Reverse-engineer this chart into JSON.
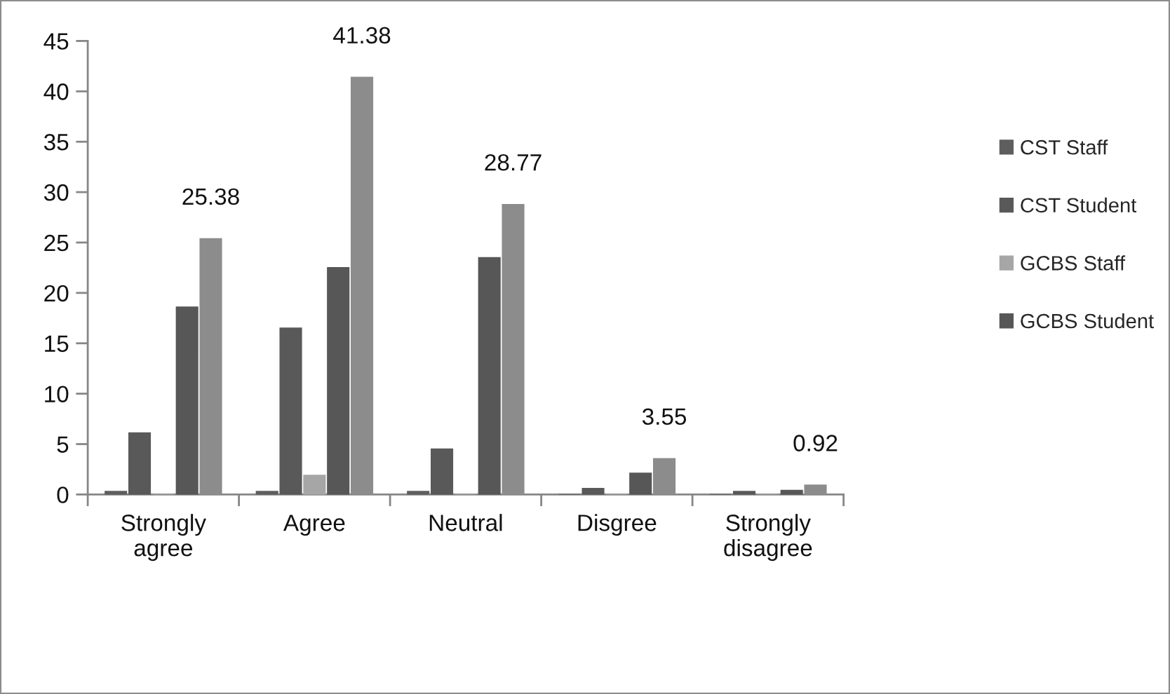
{
  "chart_data": {
    "type": "bar",
    "categories": [
      "Strongly agree",
      "Agree",
      "Neutral",
      "Disgree",
      "Strongly disagree"
    ],
    "series": [
      {
        "name": "CST Staff",
        "color": "#5e5e5e",
        "values": [
          0.3,
          0.3,
          0.3,
          0,
          0
        ]
      },
      {
        "name": "CST Student",
        "color": "#595959",
        "values": [
          6.1,
          16.5,
          4.5,
          0.6,
          0.3
        ]
      },
      {
        "name": "GCBS Staff",
        "color": "#a6a6a6",
        "values": [
          0,
          1.9,
          0,
          0,
          0
        ]
      },
      {
        "name": "GCBS Student",
        "color": "#575757",
        "values": [
          18.6,
          22.5,
          23.5,
          2.1,
          0.4
        ]
      },
      {
        "color": "#8c8c8c",
        "values": [
          25.38,
          41.38,
          28.77,
          3.55,
          0.92
        ],
        "value_labels": [
          "25.38",
          "41.38",
          "28.77",
          "3.55",
          "0.92"
        ]
      }
    ],
    "ylim": [
      0,
      45
    ],
    "yticks": [
      0,
      5,
      10,
      15,
      20,
      25,
      30,
      35,
      40,
      45
    ],
    "legend": "right"
  }
}
